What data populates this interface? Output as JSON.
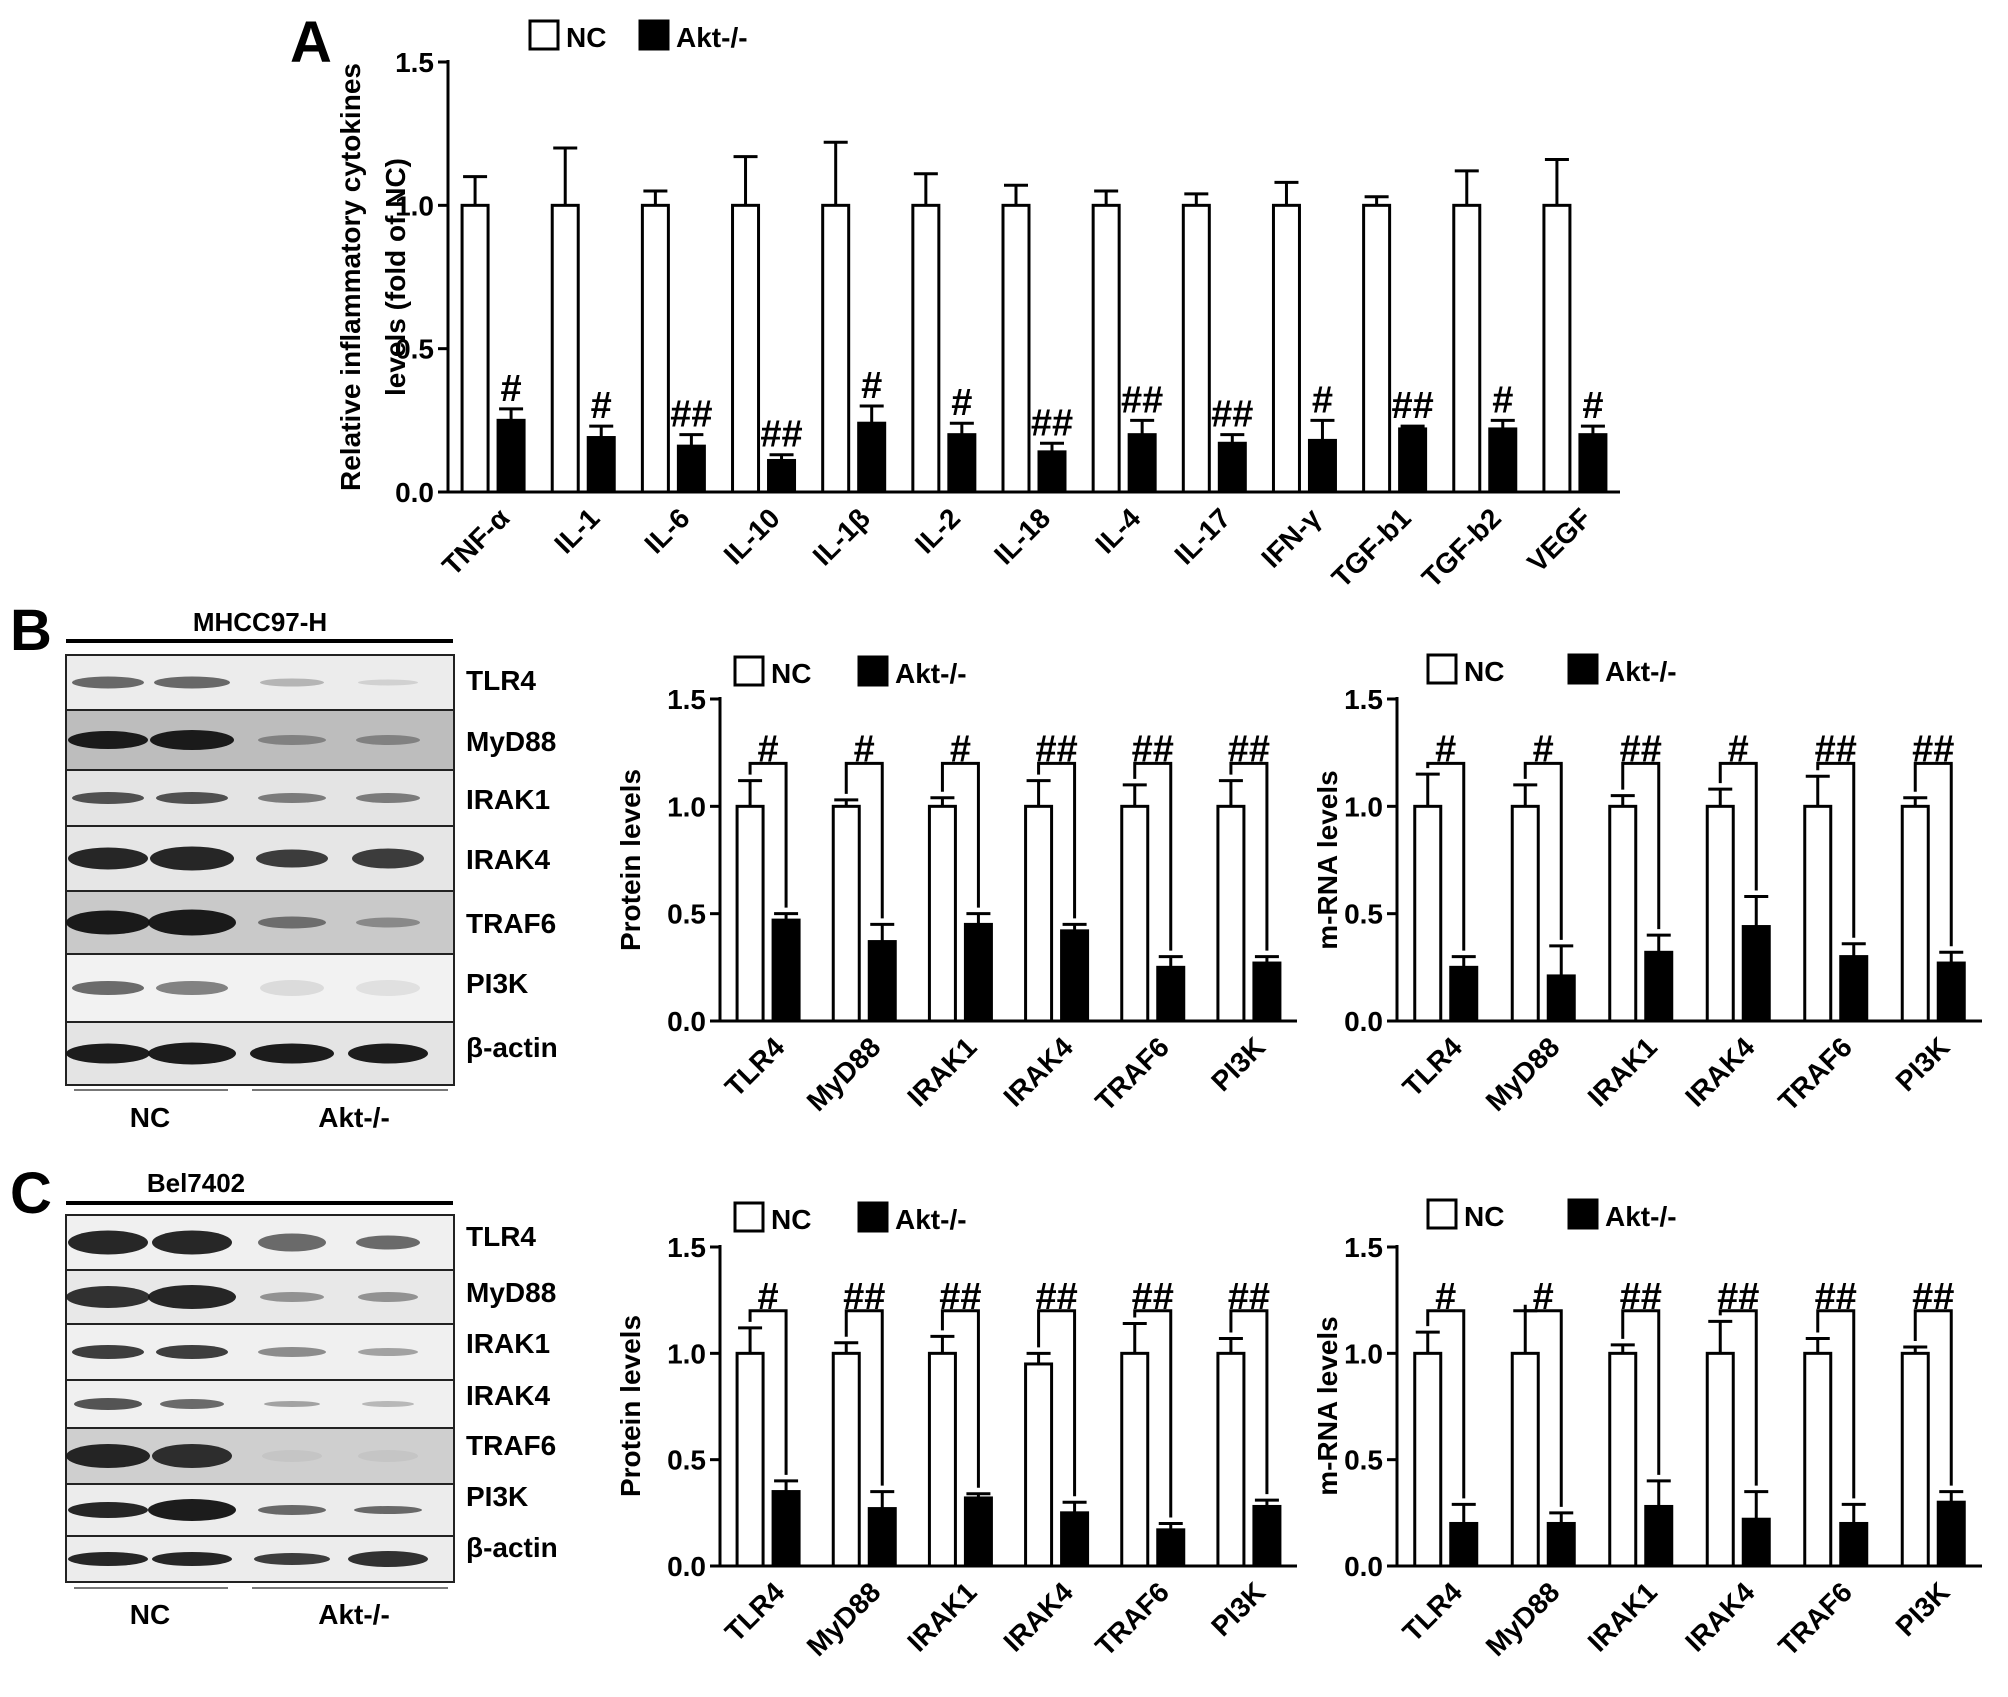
{
  "panel_letters": {
    "a": "A",
    "b": "B",
    "c": "C"
  },
  "legend": {
    "nc": "NC",
    "akt": "Akt-/-"
  },
  "blots": {
    "b": {
      "cell_line": "MHCC97-H",
      "proteins": [
        "TLR4",
        "MyD88",
        "IRAK1",
        "IRAK4",
        "TRAF6",
        "PI3K",
        "β-actin"
      ],
      "group_labels": [
        "NC",
        "Akt-/-"
      ]
    },
    "c": {
      "cell_line": "Bel7402",
      "proteins": [
        "TLR4",
        "MyD88",
        "IRAK1",
        "IRAK4",
        "TRAF6",
        "PI3K",
        "β-actin"
      ],
      "group_labels": [
        "NC",
        "Akt-/-"
      ]
    }
  },
  "chart_data": [
    {
      "id": "A",
      "type": "bar",
      "ylabel": [
        "Relative inflammatory cytokines",
        "levels (fold of NC)"
      ],
      "ylim": [
        0,
        1.5
      ],
      "yticks": [
        "0.0",
        "0.5",
        "1.0",
        "1.5"
      ],
      "categories": [
        "TNF-α",
        "IL-1",
        "IL-6",
        "IL-10",
        "IL-1β",
        "IL-2",
        "IL-18",
        "IL-4",
        "IL-17",
        "IFN-γ",
        "TGF-b1",
        "TGF-b2",
        "VEGF"
      ],
      "series": [
        {
          "name": "NC",
          "values": [
            1.0,
            1.0,
            1.0,
            1.0,
            1.0,
            1.0,
            1.0,
            1.0,
            1.0,
            1.0,
            1.0,
            1.0,
            1.0
          ],
          "errors": [
            0.1,
            0.2,
            0.05,
            0.17,
            0.22,
            0.11,
            0.07,
            0.05,
            0.04,
            0.08,
            0.03,
            0.12,
            0.16
          ]
        },
        {
          "name": "Akt-/-",
          "values": [
            0.25,
            0.19,
            0.16,
            0.11,
            0.24,
            0.2,
            0.14,
            0.2,
            0.17,
            0.18,
            0.22,
            0.22,
            0.2
          ],
          "errors": [
            0.04,
            0.04,
            0.04,
            0.02,
            0.06,
            0.04,
            0.03,
            0.05,
            0.03,
            0.07,
            0.01,
            0.03,
            0.03
          ]
        }
      ],
      "annotations": [
        "#",
        "#",
        "##",
        "##",
        "#",
        "#",
        "##",
        "##",
        "##",
        "#",
        "##",
        "#",
        "#"
      ],
      "brackets": false
    },
    {
      "id": "B-protein",
      "type": "bar",
      "ylabel": [
        "Protein levels"
      ],
      "ylim": [
        0,
        1.5
      ],
      "yticks": [
        "0.0",
        "0.5",
        "1.0",
        "1.5"
      ],
      "categories": [
        "TLR4",
        "MyD88",
        "IRAK1",
        "IRAK4",
        "TRAF6",
        "PI3K"
      ],
      "series": [
        {
          "name": "NC",
          "values": [
            1.0,
            1.0,
            1.0,
            1.0,
            1.0,
            1.0
          ],
          "errors": [
            0.12,
            0.03,
            0.04,
            0.12,
            0.1,
            0.12
          ]
        },
        {
          "name": "Akt-/-",
          "values": [
            0.47,
            0.37,
            0.45,
            0.42,
            0.25,
            0.27
          ],
          "errors": [
            0.03,
            0.08,
            0.05,
            0.03,
            0.05,
            0.03
          ]
        }
      ],
      "annotations": [
        "#",
        "#",
        "#",
        "##",
        "##",
        "##"
      ],
      "brackets": true
    },
    {
      "id": "B-mrna",
      "type": "bar",
      "ylabel": [
        "m-RNA levels"
      ],
      "ylim": [
        0,
        1.5
      ],
      "yticks": [
        "0.0",
        "0.5",
        "1.0",
        "1.5"
      ],
      "categories": [
        "TLR4",
        "MyD88",
        "IRAK1",
        "IRAK4",
        "TRAF6",
        "PI3K"
      ],
      "series": [
        {
          "name": "NC",
          "values": [
            1.0,
            1.0,
            1.0,
            1.0,
            1.0,
            1.0
          ],
          "errors": [
            0.15,
            0.1,
            0.05,
            0.08,
            0.14,
            0.04
          ]
        },
        {
          "name": "Akt-/-",
          "values": [
            0.25,
            0.21,
            0.32,
            0.44,
            0.3,
            0.27
          ],
          "errors": [
            0.05,
            0.14,
            0.08,
            0.14,
            0.06,
            0.05
          ]
        }
      ],
      "annotations": [
        "#",
        "#",
        "##",
        "#",
        "##",
        "##"
      ],
      "brackets": true
    },
    {
      "id": "C-protein",
      "type": "bar",
      "ylabel": [
        "Protein levels"
      ],
      "ylim": [
        0,
        1.5
      ],
      "yticks": [
        "0.0",
        "0.5",
        "1.0",
        "1.5"
      ],
      "categories": [
        "TLR4",
        "MyD88",
        "IRAK1",
        "IRAK4",
        "TRAF6",
        "PI3K"
      ],
      "series": [
        {
          "name": "NC",
          "values": [
            1.0,
            1.0,
            1.0,
            0.95,
            1.0,
            1.0
          ],
          "errors": [
            0.12,
            0.05,
            0.08,
            0.05,
            0.14,
            0.07
          ]
        },
        {
          "name": "Akt-/-",
          "values": [
            0.35,
            0.27,
            0.32,
            0.25,
            0.17,
            0.28
          ],
          "errors": [
            0.05,
            0.08,
            0.02,
            0.05,
            0.03,
            0.03
          ]
        }
      ],
      "annotations": [
        "#",
        "##",
        "##",
        "##",
        "##",
        "##"
      ],
      "brackets": true
    },
    {
      "id": "C-mrna",
      "type": "bar",
      "ylabel": [
        "m-RNA levels"
      ],
      "ylim": [
        0,
        1.5
      ],
      "yticks": [
        "0.0",
        "0.5",
        "1.0",
        "1.5"
      ],
      "categories": [
        "TLR4",
        "MyD88",
        "IRAK1",
        "IRAK4",
        "TRAF6",
        "PI3K"
      ],
      "series": [
        {
          "name": "NC",
          "values": [
            1.0,
            1.0,
            1.0,
            1.0,
            1.0,
            1.0
          ],
          "errors": [
            0.1,
            0.2,
            0.04,
            0.15,
            0.07,
            0.03
          ]
        },
        {
          "name": "Akt-/-",
          "values": [
            0.2,
            0.2,
            0.28,
            0.22,
            0.2,
            0.3
          ],
          "errors": [
            0.09,
            0.05,
            0.12,
            0.13,
            0.09,
            0.05
          ]
        }
      ],
      "annotations": [
        "#",
        "#",
        "##",
        "##",
        "##",
        "##"
      ],
      "brackets": true
    }
  ]
}
